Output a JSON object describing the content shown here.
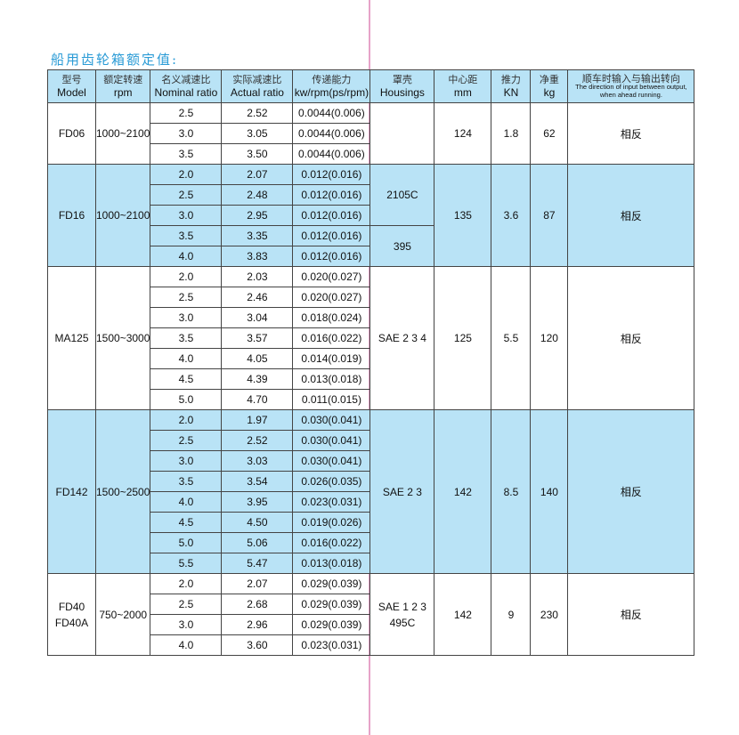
{
  "title": "船用齿轮箱额定值:",
  "colors": {
    "header_bg": "#b9e3f6",
    "band_bg": "#b9e3f6",
    "title": "#2a9bd6",
    "fold_line": "#e6a3c8"
  },
  "headers": [
    {
      "zh": "型号",
      "en": "Model"
    },
    {
      "zh": "额定转速",
      "en": "rpm"
    },
    {
      "zh": "名义减速比",
      "en": "Nominal ratio"
    },
    {
      "zh": "实际减速比",
      "en": "Actual ratio"
    },
    {
      "zh": "传递能力",
      "en": "kw/rpm(ps/rpm)"
    },
    {
      "zh": "罩壳",
      "en": "Housings"
    },
    {
      "zh": "中心距",
      "en": "mm"
    },
    {
      "zh": "推力",
      "en": "KN"
    },
    {
      "zh": "净重",
      "en": "kg"
    },
    {
      "zh": "顺车时输入与输出转向",
      "en": "The direction of input between output, when ahead running."
    }
  ],
  "groups": [
    {
      "model": "FD06",
      "rpm": "1000~2100",
      "blue": false,
      "rows": [
        [
          "2.5",
          "2.52",
          "0.0044(0.006)"
        ],
        [
          "3.0",
          "3.05",
          "0.0044(0.006)"
        ],
        [
          "3.5",
          "3.50",
          "0.0044(0.006)"
        ]
      ],
      "housings": [
        {
          "text": "",
          "span": 3
        }
      ],
      "center": "124",
      "thrust": "1.8",
      "weight": "62",
      "direction": "相反"
    },
    {
      "model": "FD16",
      "rpm": "1000~2100",
      "blue": true,
      "rows": [
        [
          "2.0",
          "2.07",
          "0.012(0.016)"
        ],
        [
          "2.5",
          "2.48",
          "0.012(0.016)"
        ],
        [
          "3.0",
          "2.95",
          "0.012(0.016)"
        ],
        [
          "3.5",
          "3.35",
          "0.012(0.016)"
        ],
        [
          "4.0",
          "3.83",
          "0.012(0.016)"
        ]
      ],
      "housings": [
        {
          "text": "2105C",
          "span": 3
        },
        {
          "text": "395",
          "span": 2
        }
      ],
      "center": "135",
      "thrust": "3.6",
      "weight": "87",
      "direction": "相反"
    },
    {
      "model": "MA125",
      "rpm": "1500~3000",
      "blue": false,
      "rows": [
        [
          "2.0",
          "2.03",
          "0.020(0.027)"
        ],
        [
          "2.5",
          "2.46",
          "0.020(0.027)"
        ],
        [
          "3.0",
          "3.04",
          "0.018(0.024)"
        ],
        [
          "3.5",
          "3.57",
          "0.016(0.022)"
        ],
        [
          "4.0",
          "4.05",
          "0.014(0.019)"
        ],
        [
          "4.5",
          "4.39",
          "0.013(0.018)"
        ],
        [
          "5.0",
          "4.70",
          "0.011(0.015)"
        ]
      ],
      "housings": [
        {
          "text": "SAE 2 3 4",
          "span": 7
        }
      ],
      "center": "125",
      "thrust": "5.5",
      "weight": "120",
      "direction": "相反"
    },
    {
      "model": "FD142",
      "rpm": "1500~2500",
      "blue": true,
      "rows": [
        [
          "2.0",
          "1.97",
          "0.030(0.041)"
        ],
        [
          "2.5",
          "2.52",
          "0.030(0.041)"
        ],
        [
          "3.0",
          "3.03",
          "0.030(0.041)"
        ],
        [
          "3.5",
          "3.54",
          "0.026(0.035)"
        ],
        [
          "4.0",
          "3.95",
          "0.023(0.031)"
        ],
        [
          "4.5",
          "4.50",
          "0.019(0.026)"
        ],
        [
          "5.0",
          "5.06",
          "0.016(0.022)"
        ],
        [
          "5.5",
          "5.47",
          "0.013(0.018)"
        ]
      ],
      "housings": [
        {
          "text": "SAE 2 3",
          "span": 8
        }
      ],
      "center": "142",
      "thrust": "8.5",
      "weight": "140",
      "direction": "相反"
    },
    {
      "model": "FD40\nFD40A",
      "rpm": "750~2000",
      "blue": false,
      "rows": [
        [
          "2.0",
          "2.07",
          "0.029(0.039)"
        ],
        [
          "2.5",
          "2.68",
          "0.029(0.039)"
        ],
        [
          "3.0",
          "2.96",
          "0.029(0.039)"
        ],
        [
          "4.0",
          "3.60",
          "0.023(0.031)"
        ]
      ],
      "housings": [
        {
          "text": "SAE 1 2 3\n495C",
          "span": 4
        }
      ],
      "center": "142",
      "thrust": "9",
      "weight": "230",
      "direction": "相反"
    }
  ]
}
